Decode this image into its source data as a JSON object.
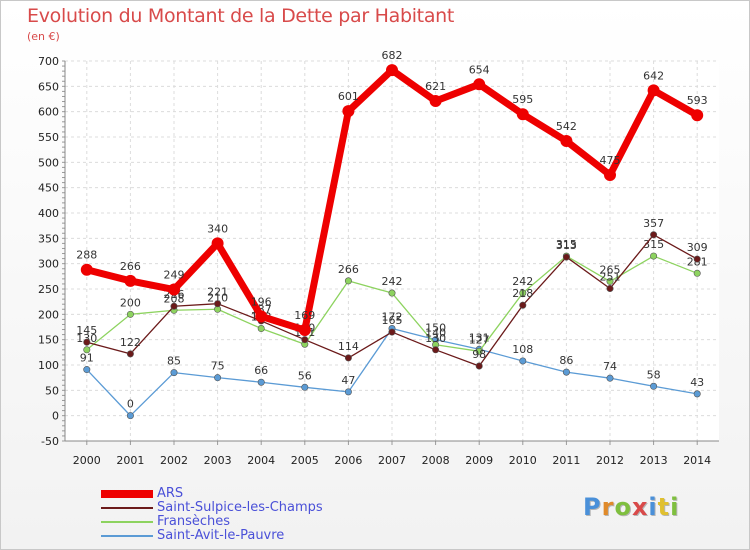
{
  "title": "Evolution du Montant de la Dette par Habitant",
  "subtitle": "(en €)",
  "logo": {
    "text": "Proxiti",
    "colors": [
      "#4a90d9",
      "#e08a2a",
      "#7fbf3f",
      "#d94a4a",
      "#4a90d9",
      "#e0c030",
      "#7fbf3f"
    ]
  },
  "chart_data": {
    "type": "line",
    "title": "Evolution du Montant de la Dette par Habitant",
    "ylabel": "(en €)",
    "xlabel": "",
    "ylim": [
      -50,
      700
    ],
    "yticks": [
      -50,
      0,
      50,
      100,
      150,
      200,
      250,
      300,
      350,
      400,
      450,
      500,
      550,
      600,
      650,
      700
    ],
    "categories": [
      "2000",
      "2001",
      "2002",
      "2003",
      "2004",
      "2005",
      "2006",
      "2007",
      "2008",
      "2009",
      "2010",
      "2011",
      "2012",
      "2013",
      "2014"
    ],
    "grid": true,
    "legend_position": "bottom-left",
    "series": [
      {
        "name": "Saint-Avit-le-Pauvre",
        "color": "#5b9bd5",
        "values": [
          91,
          0,
          85,
          75,
          66,
          56,
          47,
          172,
          150,
          131,
          108,
          86,
          74,
          58,
          43
        ]
      },
      {
        "name": "Fransèches",
        "color": "#8dd35f",
        "values": [
          130,
          200,
          208,
          210,
          172,
          141,
          266,
          242,
          140,
          127,
          242,
          315,
          265,
          315,
          281
        ]
      },
      {
        "name": "Saint-Sulpice-les-Champs",
        "color": "#6b1a1a",
        "values": [
          145,
          122,
          216,
          221,
          187,
          150,
          114,
          165,
          130,
          98,
          218,
          313,
          251,
          357,
          309
        ]
      },
      {
        "name": "ARS",
        "color": "#ee0000",
        "values": [
          288,
          266,
          249,
          340,
          196,
          169,
          601,
          682,
          621,
          654,
          595,
          542,
          475,
          642,
          593
        ]
      }
    ]
  }
}
